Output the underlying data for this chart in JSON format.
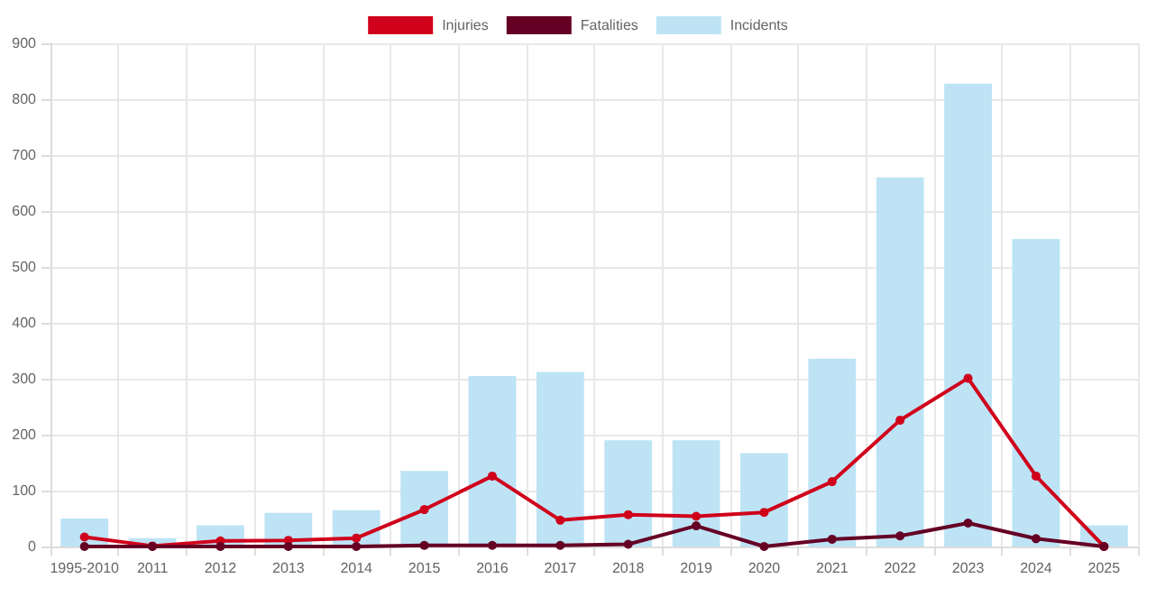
{
  "chart_data": {
    "type": "bar",
    "categories": [
      "1995-2010",
      "2011",
      "2012",
      "2013",
      "2014",
      "2015",
      "2016",
      "2017",
      "2018",
      "2019",
      "2020",
      "2021",
      "2022",
      "2023",
      "2024",
      "2025"
    ],
    "series": [
      {
        "name": "Injuries",
        "type": "line",
        "color": "#d0021b",
        "values": [
          17,
          1,
          10,
          11,
          15,
          66,
          126,
          47,
          57,
          54,
          61,
          116,
          226,
          301,
          126,
          0
        ]
      },
      {
        "name": "Fatalities",
        "type": "line",
        "color": "#650024",
        "values": [
          0,
          0,
          0,
          0,
          0,
          2,
          2,
          2,
          4,
          37,
          0,
          13,
          19,
          42,
          14,
          0
        ]
      },
      {
        "name": "Incidents",
        "color": "#bde3f5",
        "values": [
          50,
          15,
          38,
          60,
          65,
          135,
          305,
          312,
          190,
          190,
          167,
          336,
          660,
          828,
          550,
          38
        ]
      }
    ],
    "ylim": [
      0,
      900
    ],
    "yticks": [
      0,
      100,
      200,
      300,
      400,
      500,
      600,
      700,
      800,
      900
    ],
    "grid": true,
    "legend": "top",
    "marker": "circle"
  }
}
